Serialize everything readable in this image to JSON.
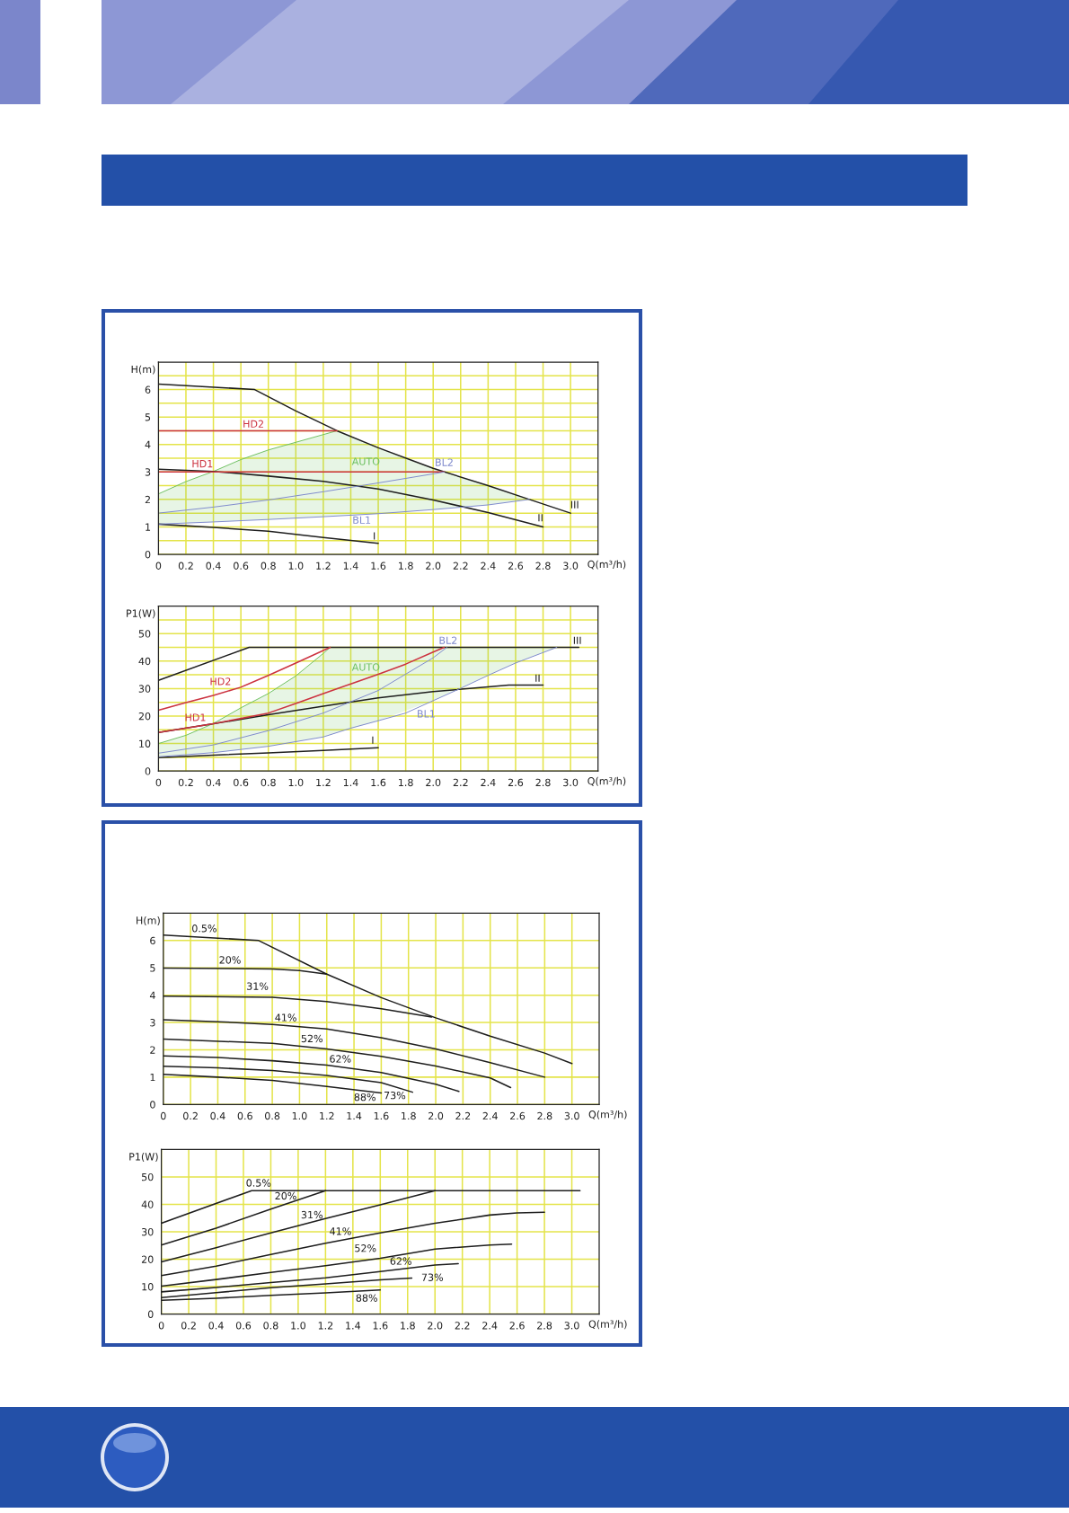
{
  "chart_data": [
    {
      "type": "line",
      "xlabel": "Q(m³/h)",
      "ylabel": "H(m)",
      "xlim": [
        0,
        3.2
      ],
      "ylim": [
        0,
        7
      ],
      "xticks": [
        0,
        0.2,
        0.4,
        0.6,
        0.8,
        {
          "value": 1,
          "label": "1.0"
        },
        1.2,
        1.4,
        1.6,
        1.8,
        {
          "value": 2,
          "label": "2.0"
        },
        2.2,
        2.4,
        2.6,
        2.8,
        {
          "value": 3,
          "label": "3.0"
        }
      ],
      "yticks": [
        0,
        {
          "value": 0.5,
          "label": null
        },
        1,
        {
          "value": 1.5,
          "label": null
        },
        2,
        {
          "value": 2.5,
          "label": null
        },
        3,
        {
          "value": 3.5,
          "label": null
        },
        4,
        {
          "value": 4.5,
          "label": null
        },
        5,
        {
          "value": 5.5,
          "label": null
        },
        6,
        {
          "value": 6.5,
          "label": null
        }
      ],
      "grid": true,
      "series": [
        {
          "name": "AUTO",
          "color": "#6cbf5f",
          "x": [
            0,
            0.2,
            0.4,
            0.6,
            0.8,
            1.0,
            1.3,
            1.6,
            2.0,
            2.4,
            2.7
          ],
          "values": [
            2.2,
            2.65,
            3.02,
            3.45,
            3.8,
            4.08,
            4.5,
            null,
            null,
            null,
            null
          ],
          "upper": [
            2.2,
            2.65,
            3.02,
            3.45,
            3.8,
            4.08,
            4.5,
            3.88,
            3.13,
            2.5,
            2.0
          ],
          "lower": [
            1.1,
            1.14,
            1.18,
            1.22,
            1.27,
            1.32,
            1.4,
            1.48,
            1.63,
            1.8,
            2.0
          ]
        },
        {
          "name": "I",
          "color": "#1e1e1e",
          "x": [
            0,
            0.4,
            0.8,
            1.2,
            1.6
          ],
          "values": [
            1.1,
            0.98,
            0.84,
            0.61,
            0.4
          ]
        },
        {
          "name": "II",
          "color": "#1e1e1e",
          "x": [
            0,
            0.4,
            0.8,
            1.2,
            1.6,
            2.0,
            2.4,
            2.8
          ],
          "values": [
            3.1,
            3.02,
            2.85,
            2.66,
            2.38,
            1.98,
            1.52,
            1.0
          ]
        },
        {
          "name": "III",
          "color": "#1e1e1e",
          "x": [
            0,
            0.7,
            1.0,
            1.3,
            1.6,
            2.0,
            2.4,
            2.7,
            3.0
          ],
          "values": [
            6.2,
            6.0,
            5.22,
            4.5,
            3.88,
            3.13,
            2.5,
            2.0,
            1.5
          ]
        },
        {
          "name": "HD1",
          "color": "#cc3340",
          "x": [
            0,
            2.08
          ],
          "values": [
            3.0,
            3.0
          ]
        },
        {
          "name": "HD2",
          "color": "#cc3340",
          "x": [
            0,
            1.3
          ],
          "values": [
            4.5,
            4.5
          ]
        },
        {
          "name": "BL1",
          "color": "#7d88cc",
          "x": [
            0,
            0.4,
            0.8,
            1.2,
            1.6,
            2.0,
            2.4,
            2.7
          ],
          "values": [
            1.1,
            1.18,
            1.27,
            1.37,
            1.48,
            1.63,
            1.8,
            2.0
          ]
        },
        {
          "name": "BL2",
          "color": "#7d88cc",
          "x": [
            0,
            0.4,
            0.8,
            1.2,
            1.6,
            2.0,
            2.08
          ],
          "values": [
            1.5,
            1.72,
            1.98,
            2.28,
            2.6,
            2.93,
            3.0
          ]
        }
      ]
    },
    {
      "type": "line",
      "xlabel": "Q(m³/h)",
      "ylabel": "P1(W)",
      "xlim": [
        0,
        3.2
      ],
      "ylim": [
        0,
        60
      ],
      "xticks": [
        0,
        0.2,
        0.4,
        0.6,
        0.8,
        {
          "value": 1,
          "label": "1.0"
        },
        1.2,
        1.4,
        1.6,
        1.8,
        {
          "value": 2,
          "label": "2.0"
        },
        2.2,
        2.4,
        2.6,
        2.8,
        {
          "value": 3,
          "label": "3.0"
        }
      ],
      "yticks": [
        0,
        {
          "value": 5,
          "label": null
        },
        10,
        {
          "value": 15,
          "label": null
        },
        20,
        {
          "value": 25,
          "label": null
        },
        30,
        {
          "value": 35,
          "label": null
        },
        40,
        {
          "value": 45,
          "label": null
        },
        50,
        {
          "value": 55,
          "label": null
        }
      ],
      "grid": true,
      "series": [
        {
          "name": "AUTO",
          "color": "#6cbf5f",
          "x": [
            0,
            0.2,
            0.4,
            0.6,
            0.8,
            1.0,
            1.2,
            1.25,
            1.6,
            2.0,
            2.4,
            2.6,
            2.9
          ],
          "values": [
            10,
            13,
            17.3,
            23,
            28.2,
            34.6,
            42.8,
            45,
            null,
            null,
            null,
            null,
            null
          ],
          "upper": [
            10,
            13,
            17.3,
            23,
            28.2,
            34.6,
            42.8,
            45,
            45,
            45,
            45,
            45,
            45
          ],
          "lower": [
            5.2,
            5.9,
            6.7,
            7.8,
            9.0,
            10.7,
            12.4,
            13.2,
            18.3,
            25.6,
            34.8,
            39.3,
            45
          ]
        },
        {
          "name": "I",
          "color": "#1e1e1e",
          "x": [
            0,
            0.4,
            0.8,
            1.2,
            1.6
          ],
          "values": [
            4.9,
            5.8,
            6.6,
            7.5,
            8.5
          ]
        },
        {
          "name": "II",
          "color": "#1e1e1e",
          "x": [
            0,
            0.4,
            0.8,
            1.2,
            1.6,
            2.0,
            2.4,
            2.55,
            2.8
          ],
          "values": [
            14,
            17.2,
            20.5,
            23.6,
            26.6,
            28.9,
            30.6,
            31.3,
            31.3
          ]
        },
        {
          "name": "III",
          "color": "#1e1e1e",
          "x": [
            0,
            0.66,
            3.06
          ],
          "values": [
            33,
            45,
            45
          ]
        },
        {
          "name": "HD1",
          "color": "#cc3340",
          "x": [
            0,
            0.4,
            0.8,
            1.0,
            1.2,
            1.4,
            1.6,
            1.8,
            2.0,
            2.08
          ],
          "values": [
            14,
            17.2,
            21.1,
            24.6,
            28.2,
            31.7,
            35.2,
            38.9,
            43.3,
            45
          ]
        },
        {
          "name": "HD2",
          "color": "#cc3340",
          "x": [
            0,
            0.2,
            0.4,
            0.6,
            0.8,
            1.0,
            1.25
          ],
          "values": [
            22.1,
            24.9,
            27.5,
            30.5,
            34.8,
            39.3,
            45
          ]
        },
        {
          "name": "BL1",
          "color": "#7d88cc",
          "x": [
            0,
            0.4,
            0.8,
            1.2,
            1.4,
            1.6,
            1.8,
            2.0,
            2.2,
            2.4,
            2.6,
            2.9
          ],
          "values": [
            5.2,
            6.7,
            9.0,
            12.4,
            15.6,
            18.3,
            21.1,
            25.6,
            30.1,
            34.8,
            39.3,
            45
          ]
        },
        {
          "name": "BL2",
          "color": "#7d88cc",
          "x": [
            0,
            0.4,
            0.8,
            1.2,
            1.6,
            2.0,
            2.1
          ],
          "values": [
            6.5,
            9.5,
            14.7,
            21.1,
            29.3,
            41.2,
            45
          ]
        }
      ]
    },
    {
      "type": "line",
      "xlabel": "Q(m³/h)",
      "ylabel": "H(m)",
      "xlim": [
        0,
        3.2
      ],
      "ylim": [
        0,
        7
      ],
      "xticks": [
        0,
        0.2,
        0.4,
        0.6,
        0.8,
        {
          "value": 1,
          "label": "1.0"
        },
        1.2,
        1.4,
        1.6,
        1.8,
        {
          "value": 2,
          "label": "2.0"
        },
        2.2,
        2.4,
        2.6,
        2.8,
        {
          "value": 3,
          "label": "3.0"
        }
      ],
      "yticks": [
        0,
        1,
        2,
        3,
        4,
        5,
        6
      ],
      "grid": true,
      "series": [
        {
          "name": "0.5%",
          "color": "#1e1e1e",
          "x": [
            0,
            0.7,
            1.2,
            1.6,
            2.0,
            2.4,
            2.8,
            3.0
          ],
          "values": [
            6.2,
            6.0,
            4.77,
            3.91,
            3.17,
            2.5,
            1.88,
            1.5
          ]
        },
        {
          "name": "20%",
          "color": "#1e1e1e",
          "x": [
            0,
            0.8,
            1.0,
            1.2
          ],
          "values": [
            4.99,
            4.96,
            4.9,
            4.77
          ]
        },
        {
          "name": "31%",
          "color": "#1e1e1e",
          "x": [
            0,
            0.8,
            1.2,
            1.6,
            1.9,
            1.97
          ],
          "values": [
            3.96,
            3.92,
            3.77,
            3.5,
            3.26,
            3.2
          ]
        },
        {
          "name": "41%",
          "color": "#1e1e1e",
          "x": [
            0,
            0.4,
            0.8,
            1.2,
            1.6,
            2.0,
            2.4,
            2.8
          ],
          "values": [
            3.1,
            3.03,
            2.93,
            2.76,
            2.44,
            2.03,
            1.53,
            1.0
          ]
        },
        {
          "name": "52%",
          "color": "#1e1e1e",
          "x": [
            0,
            0.8,
            1.2,
            1.6,
            2.0,
            2.4,
            2.55
          ],
          "values": [
            2.39,
            2.24,
            2.03,
            1.76,
            1.41,
            0.97,
            0.62
          ]
        },
        {
          "name": "62%",
          "color": "#1e1e1e",
          "x": [
            0,
            0.4,
            0.8,
            1.2,
            1.6,
            2.0,
            2.17
          ],
          "values": [
            1.78,
            1.72,
            1.6,
            1.44,
            1.17,
            0.74,
            0.48
          ]
        },
        {
          "name": "73%",
          "color": "#1e1e1e",
          "x": [
            0,
            0.4,
            0.8,
            1.2,
            1.6,
            1.83
          ],
          "values": [
            1.4,
            1.34,
            1.24,
            1.06,
            0.8,
            0.45
          ]
        },
        {
          "name": "88%",
          "color": "#1e1e1e",
          "x": [
            0,
            0.4,
            0.8,
            1.2,
            1.6
          ],
          "values": [
            1.1,
            1.0,
            0.88,
            0.66,
            0.42
          ]
        }
      ]
    },
    {
      "type": "line",
      "xlabel": "Q(m³/h)",
      "ylabel": "P1(W)",
      "xlim": [
        0,
        3.2
      ],
      "ylim": [
        0,
        60
      ],
      "xticks": [
        0,
        0.2,
        0.4,
        0.6,
        0.8,
        {
          "value": 1,
          "label": "1.0"
        },
        1.2,
        1.4,
        1.6,
        1.8,
        {
          "value": 2,
          "label": "2.0"
        },
        2.2,
        2.4,
        2.6,
        2.8,
        {
          "value": 3,
          "label": "3.0"
        }
      ],
      "yticks": [
        0,
        10,
        20,
        30,
        40,
        50
      ],
      "grid": true,
      "series": [
        {
          "name": "0.5%",
          "color": "#1e1e1e",
          "x": [
            0,
            0.66,
            3.06
          ],
          "values": [
            33.1,
            45,
            45
          ]
        },
        {
          "name": "20%",
          "color": "#1e1e1e",
          "x": [
            0,
            0.4,
            0.8,
            1.2
          ],
          "values": [
            25.2,
            31.3,
            38.3,
            45
          ]
        },
        {
          "name": "31%",
          "color": "#1e1e1e",
          "x": [
            0,
            0.4,
            0.8,
            1.2,
            1.6,
            2.0
          ],
          "values": [
            19.0,
            24.2,
            29.6,
            34.8,
            39.8,
            45
          ]
        },
        {
          "name": "41%",
          "color": "#1e1e1e",
          "x": [
            0,
            0.4,
            0.8,
            1.2,
            1.6,
            2.0,
            2.4,
            2.6,
            2.8
          ],
          "values": [
            14.0,
            17.5,
            21.7,
            25.8,
            29.6,
            33.1,
            36.1,
            36.9,
            37.1
          ]
        },
        {
          "name": "52%",
          "color": "#1e1e1e",
          "x": [
            0,
            0.4,
            0.8,
            1.2,
            1.6,
            2.0,
            2.4,
            2.56
          ],
          "values": [
            10.2,
            12.6,
            15.2,
            17.6,
            20.3,
            23.7,
            25.2,
            25.5
          ]
        },
        {
          "name": "62%",
          "color": "#1e1e1e",
          "x": [
            0,
            0.4,
            0.8,
            1.2,
            1.6,
            2.0,
            2.17
          ],
          "values": [
            8.1,
            9.7,
            11.5,
            13.2,
            15.5,
            17.9,
            18.4
          ]
        },
        {
          "name": "73%",
          "color": "#1e1e1e",
          "x": [
            0,
            0.4,
            0.8,
            1.2,
            1.6,
            1.83
          ],
          "values": [
            6.0,
            7.8,
            9.6,
            11.0,
            12.5,
            13.1
          ]
        },
        {
          "name": "88%",
          "color": "#1e1e1e",
          "x": [
            0,
            0.4,
            0.8,
            1.2,
            1.6
          ],
          "values": [
            5.0,
            5.8,
            6.8,
            7.7,
            8.8
          ]
        }
      ]
    }
  ]
}
